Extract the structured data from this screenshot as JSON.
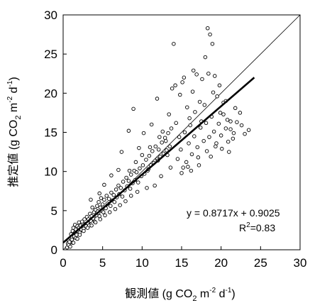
{
  "chart_data": {
    "type": "scatter",
    "xlabel": {
      "main": "観測値 (g CO",
      "sub": "2",
      "mid": " m",
      "sup1": "-2",
      "mid2": " d",
      "sup2": "-1",
      "end": ")"
    },
    "ylabel": {
      "main": "推定値 (g CO",
      "sub": "2",
      "mid": " m",
      "sup1": "-2",
      "mid2": " d",
      "sup2": "-1",
      "end": ")"
    },
    "xlim": [
      0,
      30
    ],
    "ylim": [
      0,
      30
    ],
    "x_ticks": [
      "0",
      "5",
      "10",
      "15",
      "20",
      "25",
      "30"
    ],
    "y_ticks": [
      "0",
      "5",
      "10",
      "15",
      "20",
      "25",
      "30"
    ],
    "grid": false,
    "reference_line": {
      "x": [
        0,
        30
      ],
      "y": [
        0,
        30
      ]
    },
    "regression": {
      "slope": 0.8717,
      "intercept": 0.9025,
      "x_range": [
        0,
        24.2
      ]
    },
    "annotation": {
      "equation": "y = 0.8717x + 0.9025",
      "r2_prefix": "R",
      "r2_sup": "2",
      "r2_value": "=0.83"
    },
    "points": [
      [
        0.5,
        0.3
      ],
      [
        0.6,
        0.8
      ],
      [
        0.7,
        1.2
      ],
      [
        0.8,
        0.5
      ],
      [
        0.9,
        1.5
      ],
      [
        1.0,
        1.0
      ],
      [
        1.0,
        2.0
      ],
      [
        1.1,
        1.6
      ],
      [
        1.2,
        2.4
      ],
      [
        1.2,
        0.9
      ],
      [
        1.3,
        2.8
      ],
      [
        1.4,
        1.7
      ],
      [
        1.5,
        2.2
      ],
      [
        1.5,
        3.2
      ],
      [
        1.6,
        2.6
      ],
      [
        1.7,
        1.9
      ],
      [
        1.8,
        3.0
      ],
      [
        1.9,
        2.4
      ],
      [
        2.0,
        2.8
      ],
      [
        2.0,
        3.5
      ],
      [
        2.1,
        2.2
      ],
      [
        2.2,
        3.1
      ],
      [
        2.3,
        2.6
      ],
      [
        2.4,
        3.6
      ],
      [
        2.5,
        3.0
      ],
      [
        2.6,
        2.7
      ],
      [
        2.7,
        3.9
      ],
      [
        2.8,
        3.3
      ],
      [
        2.9,
        3.0
      ],
      [
        3.0,
        4.2
      ],
      [
        3.1,
        3.4
      ],
      [
        3.2,
        3.9
      ],
      [
        3.3,
        3.1
      ],
      [
        3.4,
        4.6
      ],
      [
        3.5,
        3.7
      ],
      [
        3.6,
        4.3
      ],
      [
        3.7,
        5.4
      ],
      [
        3.8,
        4.0
      ],
      [
        3.9,
        4.8
      ],
      [
        4.0,
        3.6
      ],
      [
        4.1,
        5.1
      ],
      [
        4.2,
        4.4
      ],
      [
        4.3,
        5.6
      ],
      [
        4.4,
        4.9
      ],
      [
        4.5,
        6.1
      ],
      [
        4.6,
        4.3
      ],
      [
        4.7,
        5.4
      ],
      [
        4.8,
        6.6
      ],
      [
        4.9,
        5.0
      ],
      [
        5.0,
        5.8
      ],
      [
        5.1,
        4.8
      ],
      [
        5.2,
        6.4
      ],
      [
        5.4,
        5.3
      ],
      [
        5.5,
        6.9
      ],
      [
        5.6,
        5.9
      ],
      [
        5.8,
        6.5
      ],
      [
        6.0,
        5.6
      ],
      [
        6.1,
        7.3
      ],
      [
        6.2,
        6.3
      ],
      [
        6.4,
        7.0
      ],
      [
        6.5,
        6.1
      ],
      [
        6.7,
        7.7
      ],
      [
        6.8,
        6.7
      ],
      [
        7.0,
        8.2
      ],
      [
        7.1,
        7.1
      ],
      [
        7.3,
        7.9
      ],
      [
        7.5,
        6.8
      ],
      [
        7.6,
        8.7
      ],
      [
        7.8,
        7.6
      ],
      [
        8.0,
        9.2
      ],
      [
        8.1,
        8.1
      ],
      [
        8.3,
        8.8
      ],
      [
        8.5,
        7.8
      ],
      [
        8.6,
        9.6
      ],
      [
        8.8,
        8.5
      ],
      [
        9.0,
        10.1
      ],
      [
        9.1,
        8.9
      ],
      [
        9.3,
        9.9
      ],
      [
        9.5,
        8.6
      ],
      [
        9.7,
        10.4
      ],
      [
        9.9,
        9.4
      ],
      [
        10.1,
        10.8
      ],
      [
        10.3,
        9.7
      ],
      [
        10.5,
        11.5
      ],
      [
        10.7,
        10.1
      ],
      [
        10.9,
        12.0
      ],
      [
        11.1,
        10.8
      ],
      [
        11.3,
        12.6
      ],
      [
        11.5,
        11.1
      ],
      [
        11.7,
        13.2
      ],
      [
        11.9,
        11.6
      ],
      [
        12.1,
        12.8
      ],
      [
        12.3,
        11.9
      ],
      [
        12.5,
        13.7
      ],
      [
        12.7,
        12.3
      ],
      [
        12.9,
        14.3
      ],
      [
        13.1,
        12.7
      ],
      [
        13.3,
        14.9
      ],
      [
        13.5,
        13.2
      ],
      [
        13.7,
        15.5
      ],
      [
        3.5,
        6.4
      ],
      [
        4.6,
        7.2
      ],
      [
        5.2,
        8.3
      ],
      [
        6.1,
        9.5
      ],
      [
        7.0,
        10.2
      ],
      [
        7.4,
        12.5
      ],
      [
        8.3,
        15.2
      ],
      [
        8.9,
        18.0
      ],
      [
        9.6,
        13.0
      ],
      [
        10.2,
        14.9
      ],
      [
        11.2,
        16.0
      ],
      [
        11.9,
        19.3
      ],
      [
        12.6,
        15.1
      ],
      [
        13.4,
        17.3
      ],
      [
        13.8,
        20.6
      ],
      [
        14.2,
        21.0
      ],
      [
        14.0,
        26.3
      ],
      [
        14.8,
        19.8
      ],
      [
        15.3,
        22.0
      ],
      [
        15.7,
        18.2
      ],
      [
        16.0,
        16.8
      ],
      [
        16.4,
        20.2
      ],
      [
        16.9,
        22.4
      ],
      [
        17.3,
        18.9
      ],
      [
        17.6,
        21.8
      ],
      [
        18.0,
        24.6
      ],
      [
        18.3,
        28.3
      ],
      [
        18.6,
        27.5
      ],
      [
        18.9,
        26.3
      ],
      [
        19.2,
        22.2
      ],
      [
        19.5,
        19.6
      ],
      [
        19.9,
        17.5
      ],
      [
        20.3,
        18.8
      ],
      [
        20.8,
        16.6
      ],
      [
        21.2,
        15.4
      ],
      [
        21.6,
        14.9
      ],
      [
        22.0,
        16.3
      ],
      [
        22.6,
        15.9
      ],
      [
        23.5,
        15.3
      ],
      [
        17.9,
        18.5
      ],
      [
        14.5,
        11.6
      ],
      [
        14.9,
        12.8
      ],
      [
        15.2,
        10.5
      ],
      [
        15.6,
        11.2
      ],
      [
        15.9,
        13.6
      ],
      [
        16.3,
        12.2
      ],
      [
        16.6,
        14.5
      ],
      [
        17.0,
        13.1
      ],
      [
        17.4,
        15.6
      ],
      [
        17.8,
        13.9
      ],
      [
        18.1,
        16.2
      ],
      [
        18.5,
        14.4
      ],
      [
        18.8,
        17.0
      ],
      [
        19.1,
        15.1
      ],
      [
        19.4,
        13.6
      ],
      [
        19.7,
        16.1
      ],
      [
        20.0,
        14.6
      ],
      [
        20.3,
        17.3
      ],
      [
        20.6,
        15.5
      ],
      [
        20.9,
        13.8
      ],
      [
        21.2,
        16.4
      ],
      [
        21.5,
        14.2
      ],
      [
        18.2,
        12.6
      ],
      [
        17.1,
        11.8
      ],
      [
        16.2,
        10.1
      ],
      [
        15.0,
        9.8
      ],
      [
        13.6,
        10.5
      ],
      [
        12.4,
        9.4
      ],
      [
        11.6,
        8.2
      ],
      [
        10.6,
        7.9
      ],
      [
        9.4,
        7.4
      ],
      [
        8.6,
        6.9
      ],
      [
        7.9,
        6.2
      ],
      [
        7.2,
        5.7
      ],
      [
        6.6,
        5.2
      ],
      [
        5.9,
        4.8
      ],
      [
        5.3,
        4.4
      ],
      [
        4.7,
        3.9
      ],
      [
        4.1,
        3.5
      ],
      [
        3.6,
        3.1
      ],
      [
        3.1,
        2.8
      ],
      [
        2.6,
        2.4
      ],
      [
        2.1,
        1.9
      ],
      [
        1.6,
        1.5
      ],
      [
        1.1,
        1.3
      ],
      [
        0.8,
        1.0
      ],
      [
        0.7,
        0.6
      ],
      [
        0.9,
        0.4
      ],
      [
        1.3,
        0.9
      ],
      [
        1.8,
        1.4
      ],
      [
        19.0,
        20.1
      ],
      [
        16.7,
        17.6
      ],
      [
        15.4,
        15.0
      ],
      [
        14.3,
        16.2
      ],
      [
        13.0,
        13.9
      ],
      [
        12.2,
        14.4
      ],
      [
        11.0,
        13.1
      ],
      [
        10.0,
        12.1
      ],
      [
        9.2,
        11.2
      ],
      [
        8.4,
        10.1
      ],
      [
        22.4,
        17.5
      ],
      [
        21.8,
        18.1
      ],
      [
        20.6,
        19.0
      ],
      [
        19.8,
        21.0
      ],
      [
        17.5,
        16.4
      ],
      [
        16.1,
        15.9
      ],
      [
        14.7,
        14.4
      ],
      [
        13.2,
        12.1
      ],
      [
        12.0,
        11.4
      ],
      [
        10.8,
        10.3
      ],
      [
        20.1,
        12.9
      ],
      [
        19.3,
        13.2
      ],
      [
        18.7,
        11.9
      ],
      [
        17.2,
        10.8
      ],
      [
        15.8,
        10.6
      ],
      [
        23.0,
        14.8
      ],
      [
        21.0,
        12.5
      ],
      [
        18.4,
        22.5
      ],
      [
        16.5,
        22.9
      ],
      [
        15.1,
        21.4
      ]
    ]
  }
}
